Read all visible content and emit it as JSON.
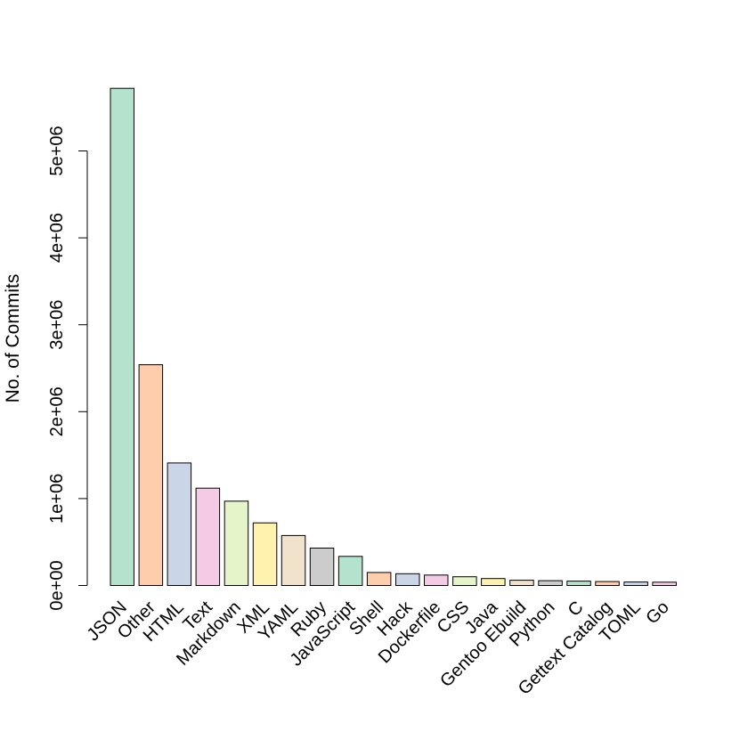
{
  "chart_data": {
    "type": "bar",
    "title": "",
    "xlabel": "",
    "ylabel": "No. of Commits",
    "ylim": [
      0,
      5700000
    ],
    "yticks": [
      0,
      1000000,
      2000000,
      3000000,
      4000000,
      5000000
    ],
    "ytick_labels": [
      "0e+00",
      "1e+06",
      "2e+06",
      "3e+06",
      "4e+06",
      "5e+06"
    ],
    "grid": false,
    "categories": [
      "JSON",
      "Other",
      "HTML",
      "Text",
      "Markdown",
      "XML",
      "YAML",
      "Ruby",
      "JavaScript",
      "Shell",
      "Hack",
      "Dockerfile",
      "CSS",
      "Java",
      "Gentoo Ebuild",
      "Python",
      "C",
      "Gettext Catalog",
      "TOML",
      "Go"
    ],
    "values": [
      5720000,
      2540000,
      1410000,
      1120000,
      970000,
      720000,
      575000,
      430000,
      335000,
      150000,
      135000,
      120000,
      100000,
      80000,
      60000,
      55000,
      50000,
      45000,
      40000,
      38000
    ],
    "colors": [
      "#B3E2CD",
      "#FDCDAC",
      "#CBD5E8",
      "#F4CAE4",
      "#E6F5C9",
      "#FFF2AE",
      "#F1E2CC",
      "#CCCCCC",
      "#B3E2CD",
      "#FDCDAC",
      "#CBD5E8",
      "#F4CAE4",
      "#E6F5C9",
      "#FFF2AE",
      "#F1E2CC",
      "#CCCCCC",
      "#B3E2CD",
      "#FDCDAC",
      "#CBD5E8",
      "#F4CAE4"
    ]
  }
}
